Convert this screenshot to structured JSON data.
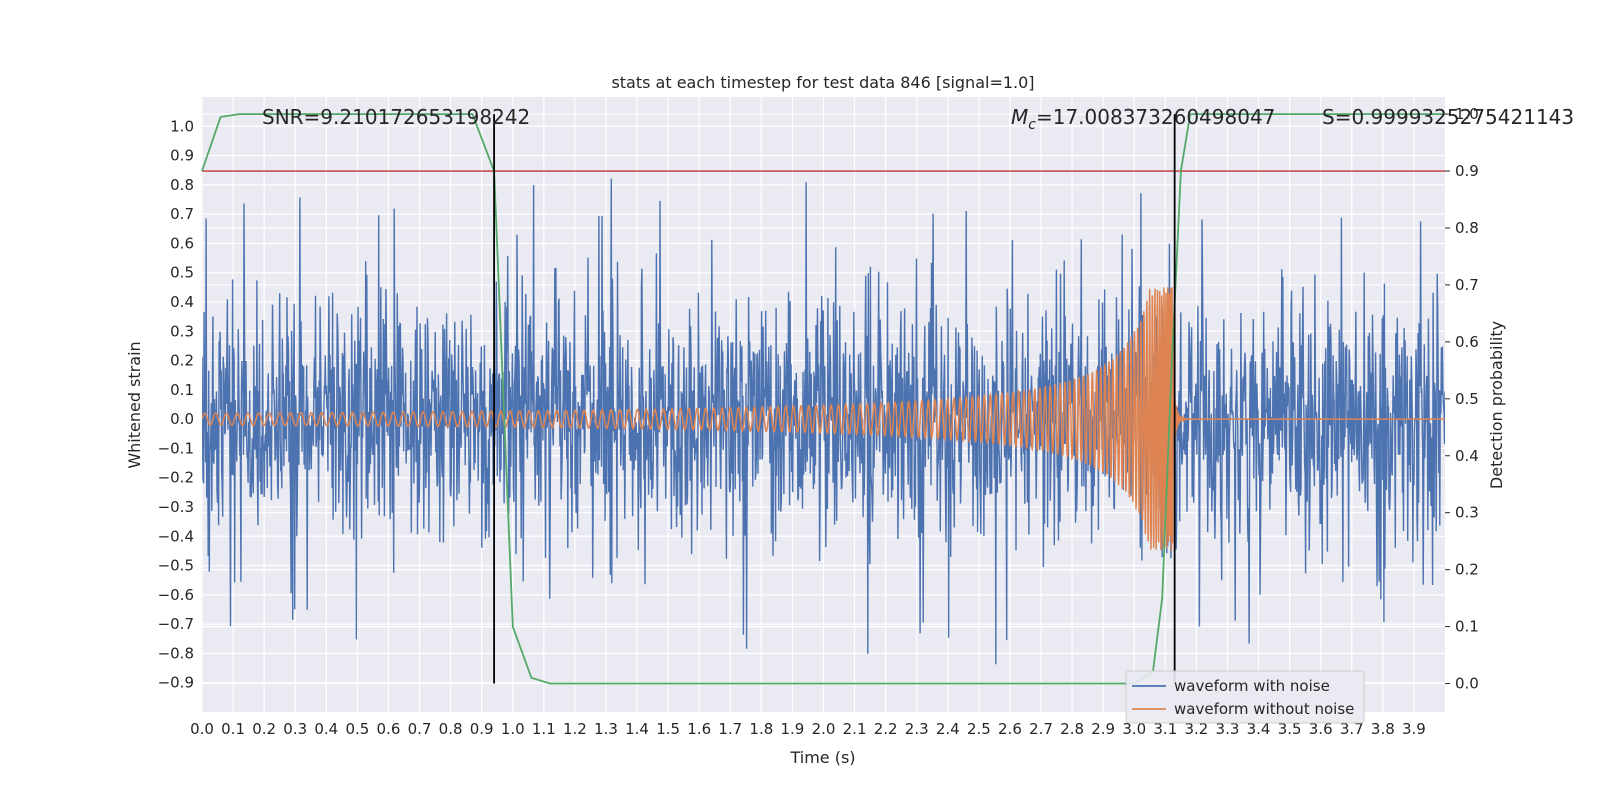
{
  "chart_data": {
    "type": "line",
    "title": "stats at each timestep for test data 846 [signal=1.0]",
    "xlabel": "Time (s)",
    "ylabel": "Whitened strain",
    "y2label": "Detection probability",
    "xlim": [
      0.0,
      4.0
    ],
    "ylim": [
      -1.0,
      1.1
    ],
    "y2lim": [
      -0.05,
      1.03
    ],
    "xticks": [
      "0.0",
      "0.1",
      "0.2",
      "0.3",
      "0.4",
      "0.5",
      "0.6",
      "0.7",
      "0.8",
      "0.9",
      "1.0",
      "1.1",
      "1.2",
      "1.3",
      "1.4",
      "1.5",
      "1.6",
      "1.7",
      "1.8",
      "1.9",
      "2.0",
      "2.1",
      "2.2",
      "2.3",
      "2.4",
      "2.5",
      "2.6",
      "2.7",
      "2.8",
      "2.9",
      "3.0",
      "3.1",
      "3.2",
      "3.3",
      "3.4",
      "3.5",
      "3.6",
      "3.7",
      "3.8",
      "3.9"
    ],
    "yticks": [
      "1.0",
      "0.9",
      "0.8",
      "0.7",
      "0.6",
      "0.5",
      "0.4",
      "0.3",
      "0.2",
      "0.1",
      "0.0",
      "−0.1",
      "−0.2",
      "−0.3",
      "−0.4",
      "−0.5",
      "−0.6",
      "−0.7",
      "−0.8",
      "−0.9"
    ],
    "y2ticks": [
      "1.0",
      "0.9",
      "0.8",
      "0.7",
      "0.6",
      "0.5",
      "0.4",
      "0.3",
      "0.2",
      "0.1",
      "0.0"
    ],
    "grid": true,
    "legend_position": "lower-right",
    "annotations": {
      "snr": "SNR=9.210172653198242",
      "mc": "=17.008373260498047",
      "mc_symbol": "M",
      "mc_sub": "c",
      "s": "S=0.9999325275421143"
    },
    "vlines_x": [
      0.94,
      3.13
    ],
    "threshold_y2": 0.9,
    "series": [
      {
        "name": "waveform with noise",
        "color": "#4c72b0",
        "noise_std": 0.2,
        "spike_range": [
          -0.9,
          0.87
        ]
      },
      {
        "name": "waveform without noise",
        "color": "#dd8452",
        "chirp_start_amp": 0.02,
        "chirp_peak_amp": 0.45,
        "merger_time": 3.13
      },
      {
        "name": "detection probability",
        "color": "#55a868",
        "x": [
          0.0,
          0.06,
          0.12,
          0.18,
          0.25,
          0.31,
          0.37,
          0.43,
          0.5,
          0.56,
          0.62,
          0.68,
          0.75,
          0.81,
          0.87,
          0.94,
          1.0,
          1.06,
          1.12,
          2.5,
          3.0,
          3.06,
          3.09,
          3.12,
          3.15,
          3.18,
          3.25,
          3.5,
          4.0
        ],
        "y": [
          0.9,
          0.995,
          1.0,
          1.0,
          1.0,
          1.0,
          1.0,
          1.0,
          1.0,
          1.0,
          1.0,
          1.0,
          1.0,
          1.0,
          1.0,
          0.9,
          0.1,
          0.01,
          0.0,
          0.0,
          0.0,
          0.02,
          0.15,
          0.55,
          0.9,
          1.0,
          1.0,
          1.0,
          1.0
        ]
      }
    ]
  }
}
